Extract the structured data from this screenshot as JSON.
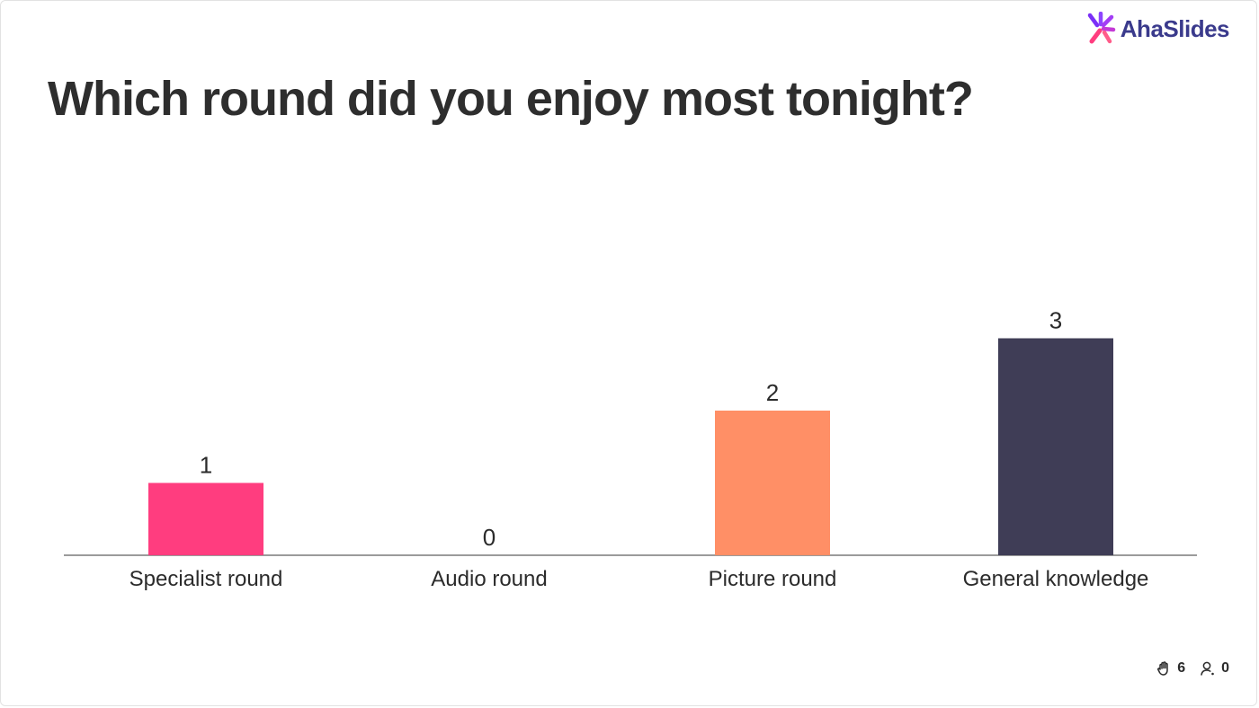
{
  "brand": {
    "name": "AhaSlides"
  },
  "slide": {
    "title": "Which round did you enjoy most tonight?"
  },
  "chart_data": {
    "type": "bar",
    "categories": [
      "Specialist round",
      "Audio round",
      "Picture round",
      "General knowledge"
    ],
    "values": [
      1,
      0,
      2,
      3
    ],
    "colors": [
      "#ff3d7f",
      "#3f3d56",
      "#ff8f66",
      "#3f3d56"
    ],
    "title": "Which round did you enjoy most tonight?",
    "xlabel": "",
    "ylabel": "",
    "ylim": [
      0,
      3
    ],
    "grid": false,
    "legend": "none"
  },
  "footer": {
    "reactions_icon": "hand-icon",
    "reactions_count": "6",
    "participants_icon": "person-icon",
    "participants_count": "0"
  },
  "accent_colors": {
    "axis": "#7a7a7a",
    "brand_text": "#3a3a8c"
  }
}
